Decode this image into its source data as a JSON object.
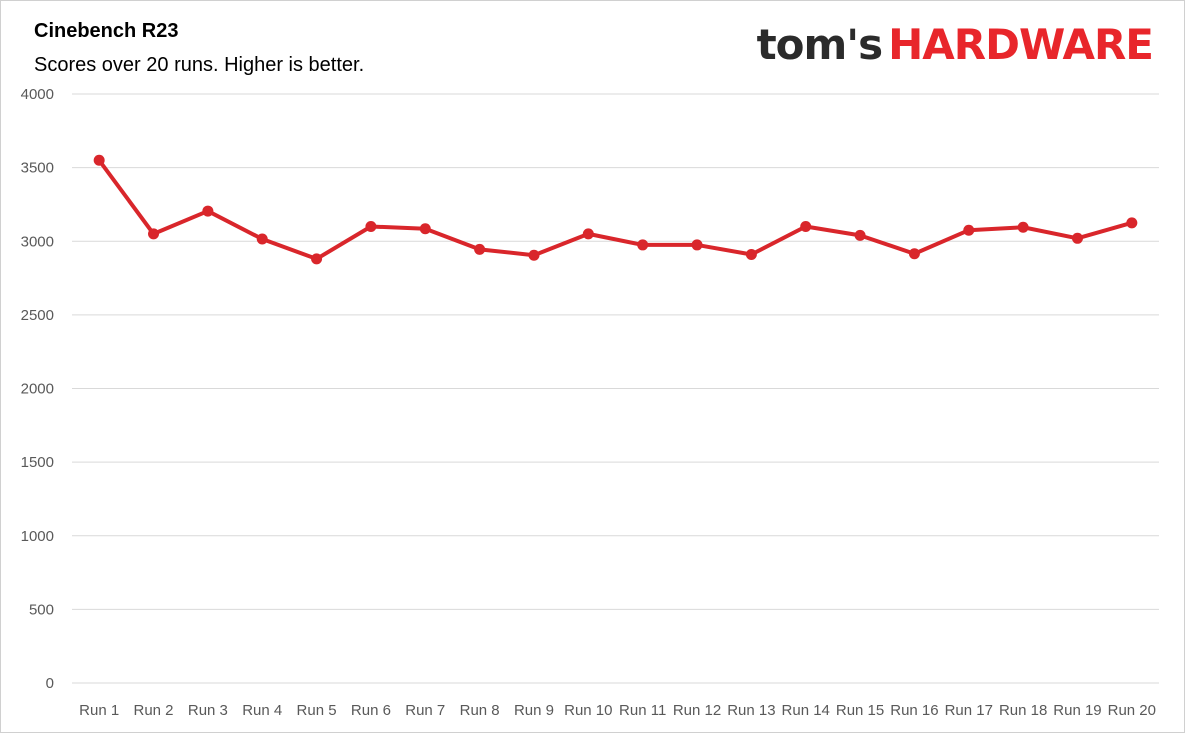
{
  "chart_data": {
    "type": "line",
    "title": "Cinebench R23",
    "subtitle": "Scores over 20 runs. Higher is better.",
    "xlabel": "",
    "ylabel": "",
    "ylim": [
      0,
      4000
    ],
    "yticks": [
      "0",
      "500",
      "1000",
      "1500",
      "2000",
      "2500",
      "3000",
      "3500",
      "4000"
    ],
    "grid": true,
    "legend": "none",
    "categories": [
      "Run 1",
      "Run 2",
      "Run 3",
      "Run 4",
      "Run 5",
      "Run 6",
      "Run 7",
      "Run 8",
      "Run 9",
      "Run 10",
      "Run 11",
      "Run 12",
      "Run 13",
      "Run 14",
      "Run 15",
      "Run 16",
      "Run 17",
      "Run 18",
      "Run 19",
      "Run 20"
    ],
    "series": [
      {
        "values": [
          3550,
          3050,
          3205,
          3015,
          2880,
          3100,
          3085,
          2945,
          2905,
          3050,
          2975,
          2975,
          2910,
          3100,
          3040,
          2915,
          3075,
          3095,
          3020,
          3125
        ],
        "color": "#d9262b"
      }
    ]
  },
  "logo": {
    "part1": "tom's",
    "part2": "HARDWARE",
    "color_dark": "#2b2b2b",
    "color_red": "#e8262b"
  }
}
